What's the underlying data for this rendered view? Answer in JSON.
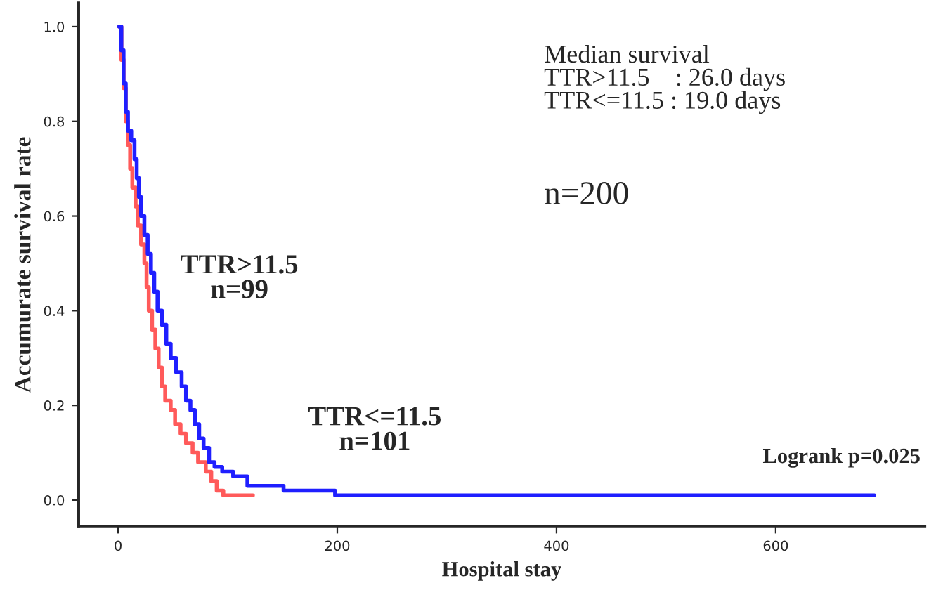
{
  "chart_data": {
    "type": "step",
    "xlabel": "Hospital stay",
    "ylabel": "Accumurate survival rate",
    "xlim": [
      -36,
      736
    ],
    "ylim": [
      -0.056,
      1.05
    ],
    "xticks": [
      0,
      200,
      400,
      600
    ],
    "yticks": [
      {
        "value": 0,
        "label": "0.0"
      },
      {
        "value": 0.2,
        "label": "0.2"
      },
      {
        "value": 0.4,
        "label": "0.4"
      },
      {
        "value": 0.6,
        "label": "0.6"
      },
      {
        "value": 0.8,
        "label": "0.8"
      },
      {
        "value": 1,
        "label": "1.0"
      }
    ],
    "grid": false,
    "legend": false,
    "series": [
      {
        "color": "#1f1fff",
        "x": [
          1,
          3,
          5,
          7,
          9,
          12,
          15,
          17,
          19,
          21,
          24,
          27,
          30,
          33,
          36,
          40,
          44,
          48,
          53,
          58,
          62,
          66,
          70,
          74,
          78,
          83,
          88,
          95,
          105,
          118,
          151,
          198,
          690
        ],
        "values": [
          1.0,
          0.95,
          0.88,
          0.82,
          0.78,
          0.76,
          0.72,
          0.68,
          0.64,
          0.6,
          0.56,
          0.52,
          0.48,
          0.44,
          0.4,
          0.37,
          0.33,
          0.3,
          0.27,
          0.24,
          0.21,
          0.19,
          0.16,
          0.13,
          0.11,
          0.08,
          0.07,
          0.06,
          0.05,
          0.03,
          0.02,
          0.01,
          0.01
        ]
      },
      {
        "color": "#ff5a5a",
        "x": [
          1,
          3,
          5,
          7,
          9,
          11,
          13,
          16,
          18,
          21,
          24,
          26,
          28,
          31,
          34,
          37,
          40,
          43,
          48,
          52,
          57,
          62,
          68,
          73,
          80,
          85,
          90,
          96,
          123
        ],
        "values": [
          1.0,
          0.93,
          0.87,
          0.8,
          0.75,
          0.7,
          0.66,
          0.62,
          0.58,
          0.54,
          0.5,
          0.45,
          0.4,
          0.36,
          0.32,
          0.28,
          0.24,
          0.21,
          0.19,
          0.16,
          0.14,
          0.12,
          0.1,
          0.08,
          0.06,
          0.04,
          0.02,
          0.01,
          0.01
        ]
      }
    ],
    "annotations": [
      "Median survival\nTTR>11.5    : 26.0 days\nTTR<=11.5 : 19.0 days",
      "n=200",
      "TTR>11.5\nn=99",
      "TTR<=11.5\nn=101",
      "Logrank p=0.025"
    ]
  }
}
